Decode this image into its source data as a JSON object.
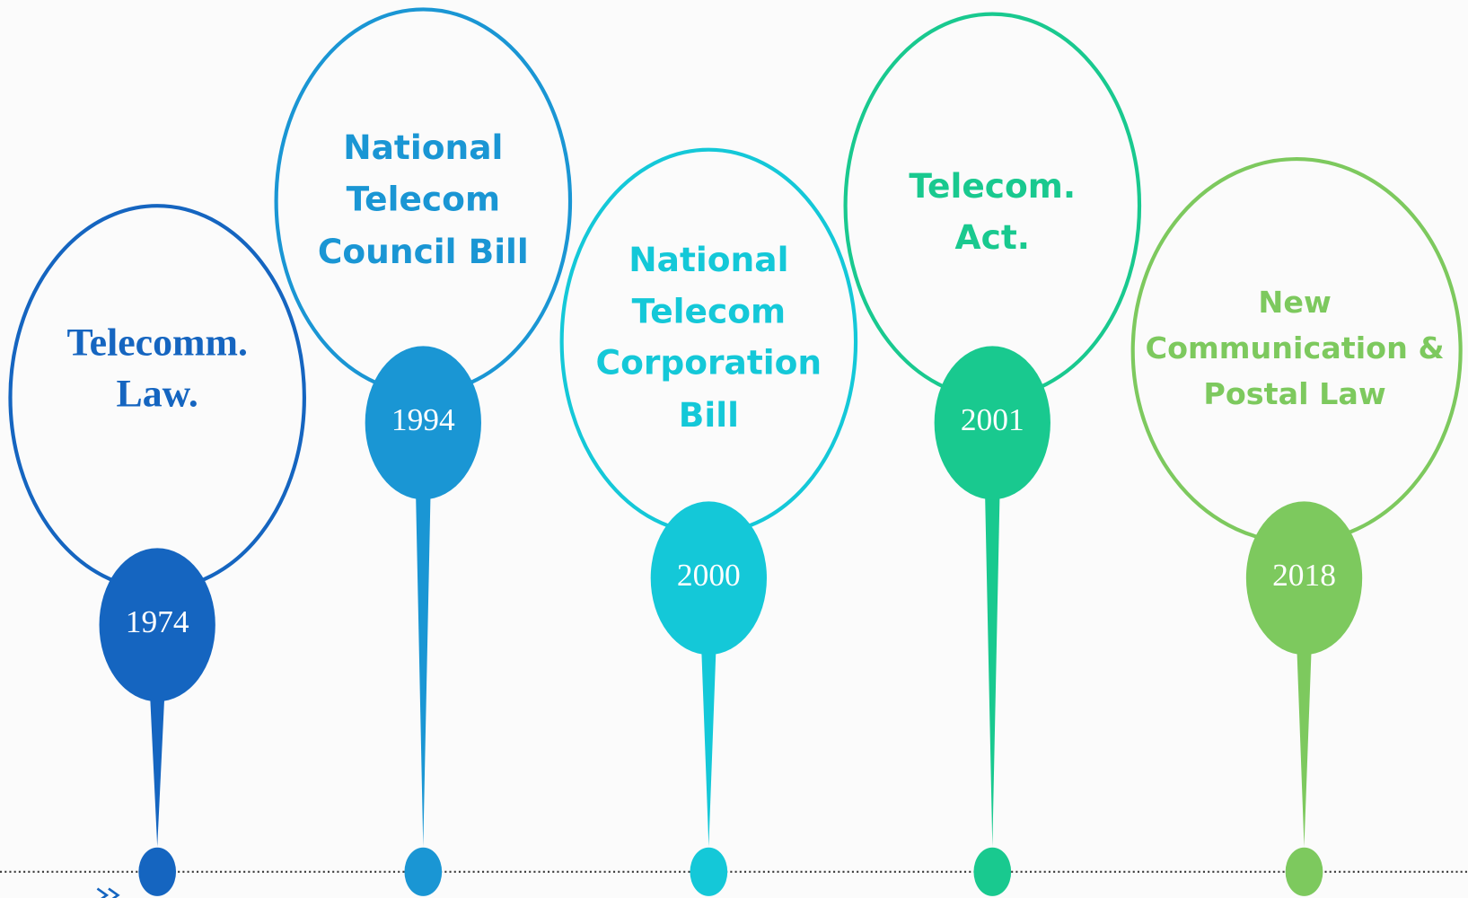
{
  "timeline": [
    {
      "year": "1974",
      "label": [
        "Telecomm.",
        "Law."
      ]
    },
    {
      "year": "1994",
      "label": [
        "National",
        "Telecom",
        "Council Bill"
      ]
    },
    {
      "year": "2000",
      "label": [
        "National",
        "Telecom",
        "Corporation",
        "Bill"
      ]
    },
    {
      "year": "2001",
      "label": [
        "Telecom.",
        "Act."
      ]
    },
    {
      "year": "2018",
      "label": [
        "New",
        "Communication &",
        "Postal Law"
      ]
    }
  ]
}
